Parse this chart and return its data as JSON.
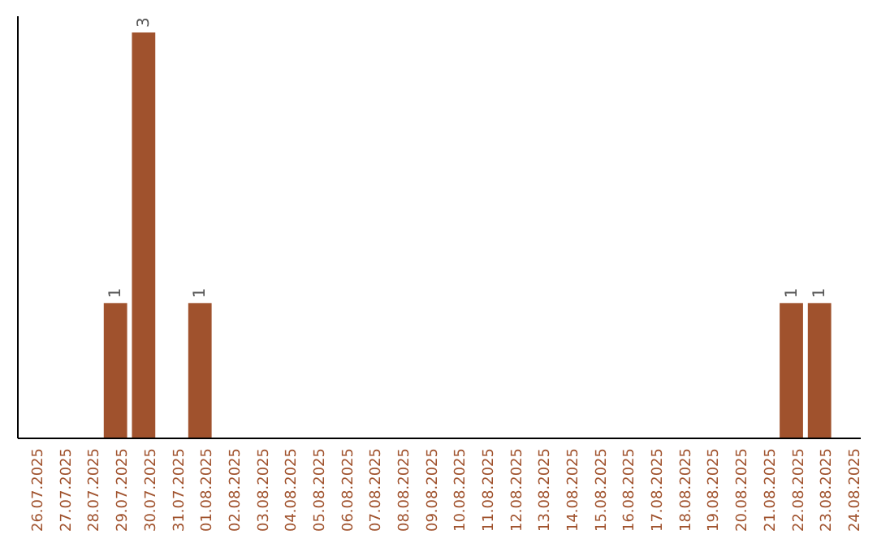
{
  "chart_data": {
    "type": "bar",
    "categories": [
      "26.07.2025",
      "27.07.2025",
      "28.07.2025",
      "29.07.2025",
      "30.07.2025",
      "31.07.2025",
      "01.08.2025",
      "02.08.2025",
      "03.08.2025",
      "04.08.2025",
      "05.08.2025",
      "06.08.2025",
      "07.08.2025",
      "08.08.2025",
      "09.08.2025",
      "10.08.2025",
      "11.08.2025",
      "12.08.2025",
      "13.08.2025",
      "14.08.2025",
      "15.08.2025",
      "16.08.2025",
      "17.08.2025",
      "18.08.2025",
      "19.08.2025",
      "20.08.2025",
      "21.08.2025",
      "22.08.2025",
      "23.08.2025",
      "24.08.2025"
    ],
    "values": [
      0,
      0,
      0,
      1,
      3,
      0,
      1,
      0,
      0,
      0,
      0,
      0,
      0,
      0,
      0,
      0,
      0,
      0,
      0,
      0,
      0,
      0,
      0,
      0,
      0,
      0,
      0,
      1,
      1,
      0
    ],
    "value_labels": [
      null,
      null,
      null,
      "1",
      "3",
      null,
      "1",
      null,
      null,
      null,
      null,
      null,
      null,
      null,
      null,
      null,
      null,
      null,
      null,
      null,
      null,
      null,
      null,
      null,
      null,
      null,
      null,
      "1",
      "1",
      null
    ],
    "color": "#a0522d",
    "grid": false,
    "tick_labels": "x"
  }
}
